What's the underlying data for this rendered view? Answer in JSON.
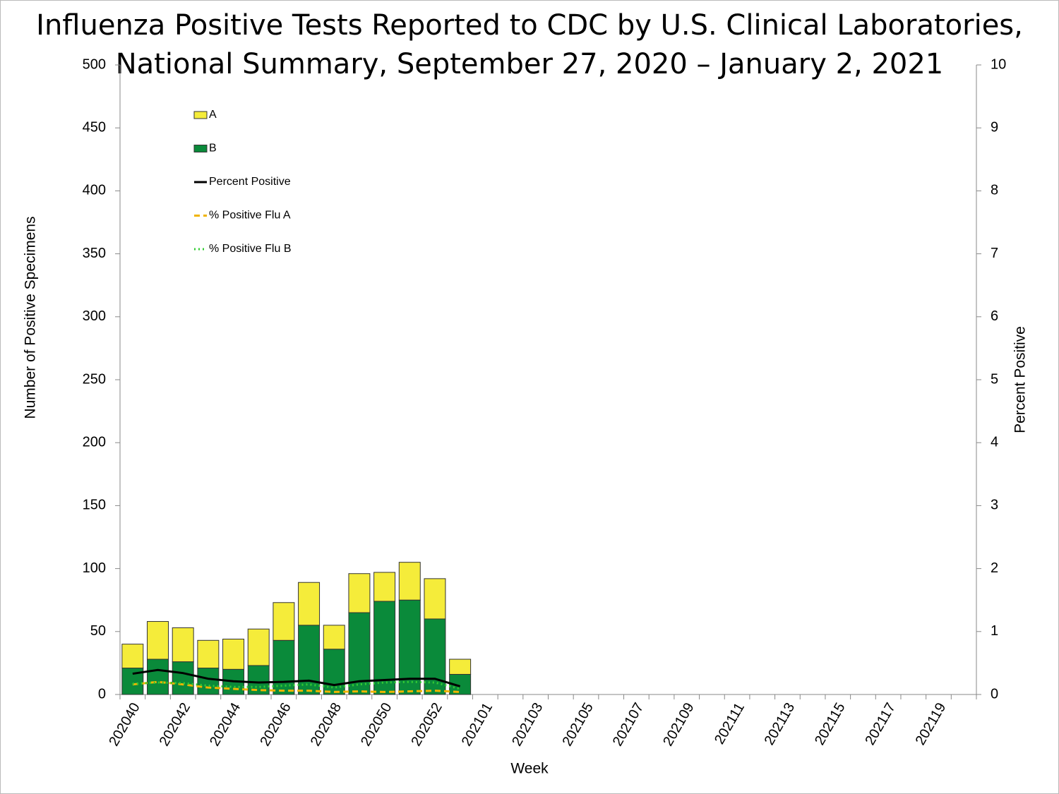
{
  "chart_data": {
    "type": "bar",
    "title": "Influenza Positive Tests Reported to CDC by U.S. Clinical Laboratories,",
    "subtitle": "National Summary, September 27, 2020 – January 2, 2021",
    "x_label": "Week",
    "y_label": "Number of Positive Specimens",
    "y2_label": "Percent Positive",
    "categories": [
      "202040",
      null,
      "202042",
      null,
      "202044",
      null,
      "202046",
      null,
      "202048",
      null,
      "202050",
      null,
      "202052",
      null,
      "202101",
      null,
      "202103",
      null,
      "202105",
      null,
      "202107",
      null,
      "202109",
      null,
      "202111",
      null,
      "202113",
      null,
      "202115",
      null,
      "202117",
      null,
      "202119",
      null
    ],
    "series": [
      {
        "name": "A",
        "type": "bar",
        "color": "#f5ec3a",
        "values": [
          19,
          30,
          27,
          22,
          24,
          29,
          30,
          34,
          19,
          31,
          23,
          30,
          32,
          12,
          null,
          null,
          null,
          null,
          null,
          null,
          null,
          null,
          null,
          null,
          null,
          null,
          null,
          null,
          null,
          null,
          null,
          null,
          null,
          null
        ]
      },
      {
        "name": "B",
        "type": "bar",
        "color": "#0a8a3a",
        "values": [
          21,
          28,
          26,
          21,
          20,
          23,
          43,
          55,
          36,
          65,
          74,
          75,
          60,
          16,
          null,
          null,
          null,
          null,
          null,
          null,
          null,
          null,
          null,
          null,
          null,
          null,
          null,
          null,
          null,
          null,
          null,
          null,
          null,
          null
        ]
      },
      {
        "name": "Percent Positive",
        "type": "line",
        "axis": "y2",
        "color": "#000000",
        "dash": "solid",
        "values": [
          0.33,
          0.39,
          0.34,
          0.25,
          0.21,
          0.19,
          0.2,
          0.22,
          0.15,
          0.21,
          0.23,
          0.25,
          0.25,
          0.13,
          null,
          null,
          null,
          null,
          null,
          null,
          null,
          null,
          null,
          null,
          null,
          null,
          null,
          null,
          null,
          null,
          null,
          null,
          null,
          null
        ]
      },
      {
        "name": "% Positive Flu A",
        "type": "line",
        "axis": "y2",
        "color": "#f0b400",
        "dash": "dashed",
        "values": [
          0.16,
          0.2,
          0.16,
          0.11,
          0.09,
          0.07,
          0.06,
          0.06,
          0.04,
          0.05,
          0.04,
          0.05,
          0.06,
          0.04,
          null,
          null,
          null,
          null,
          null,
          null,
          null,
          null,
          null,
          null,
          null,
          null,
          null,
          null,
          null,
          null,
          null,
          null,
          null,
          null
        ]
      },
      {
        "name": "% Positive Flu B",
        "type": "line",
        "axis": "y2",
        "color": "#33cc33",
        "dash": "dotted",
        "values": [
          0.17,
          0.19,
          0.18,
          0.14,
          0.12,
          0.12,
          0.14,
          0.16,
          0.11,
          0.16,
          0.19,
          0.2,
          0.19,
          0.09,
          null,
          null,
          null,
          null,
          null,
          null,
          null,
          null,
          null,
          null,
          null,
          null,
          null,
          null,
          null,
          null,
          null,
          null,
          null,
          null
        ]
      }
    ],
    "ylim": [
      0,
      500
    ],
    "yticks": [
      0,
      50,
      100,
      150,
      200,
      250,
      300,
      350,
      400,
      450,
      500
    ],
    "y2lim": [
      0,
      10
    ],
    "y2ticks": [
      0,
      1,
      2,
      3,
      4,
      5,
      6,
      7,
      8,
      9,
      10
    ],
    "legend": "top-left",
    "stacked": true
  }
}
